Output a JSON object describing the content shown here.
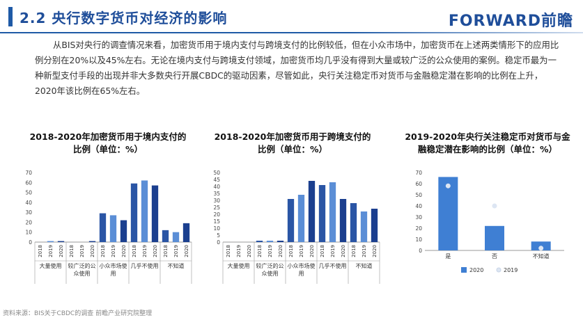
{
  "header": {
    "title": "2.2 央行数字货币对经济的影响",
    "logo": "FORWARD前瞻"
  },
  "intro": "从BIS对央行的调查情况来看，加密货币用于境内支付与跨境支付的比例较低，但在小众市场中，加密货币在上述两类情形下的应用比例分别在20%以及45%左右。无论在境内支付与跨境支付领域，加密货币均几乎没有得到大量或较广泛的公众使用的案例。稳定币最为一种新型支付手段的出现并非大多数央行开展CBDC的驱动因素，尽管如此，央行关注稳定币对货币与金融稳定潜在影响的比例在上升，2020年该比例在65%左右。",
  "colors": {
    "bar_2018": "#2a55a5",
    "bar_2019": "#5b8ed6",
    "bar_2020": "#1b3f8f",
    "accent": "#1f5aa6"
  },
  "chart_data": [
    {
      "type": "bar",
      "title": "2018-2020年加密货币用于境内支付的比例（单位：%）",
      "groups": [
        "大量使用",
        "较广泛的公众使用",
        "小众市场使用",
        "几乎不使用",
        "不知道"
      ],
      "years": [
        "2018",
        "2019",
        "2020"
      ],
      "values": [
        [
          0,
          1,
          1
        ],
        [
          0,
          0,
          1
        ],
        [
          29,
          27,
          22
        ],
        [
          59,
          62,
          57
        ],
        [
          12,
          10,
          19
        ]
      ],
      "ylim": [
        0,
        70
      ],
      "yticks": [
        0,
        10,
        20,
        30,
        40,
        50,
        60,
        70
      ]
    },
    {
      "type": "bar",
      "title": "2018-2020年加密货币用于跨境支付的比例（单位：%）",
      "groups": [
        "大量使用",
        "较广泛的公众使用",
        "小众市场使用",
        "几乎不使用",
        "不知道"
      ],
      "years": [
        "2018",
        "2019",
        "2020"
      ],
      "values": [
        [
          0,
          0,
          0
        ],
        [
          1,
          1,
          1
        ],
        [
          31,
          34,
          44
        ],
        [
          41,
          43,
          31
        ],
        [
          28,
          22,
          24
        ]
      ],
      "ylim": [
        0,
        50
      ],
      "yticks": [
        0,
        5,
        10,
        15,
        20,
        25,
        30,
        35,
        40,
        45,
        50
      ]
    },
    {
      "type": "bar",
      "title": "2019-2020年央行关注稳定币对货币与金融稳定潜在影响的比例（单位：%）",
      "categories": [
        "是",
        "否",
        "不知道"
      ],
      "series": [
        {
          "name": "2020",
          "values": [
            66,
            22,
            8
          ]
        },
        {
          "name": "2019",
          "values": [
            58,
            40,
            2
          ]
        }
      ],
      "ylim": [
        0,
        70
      ],
      "yticks": [
        0,
        10,
        20,
        30,
        40,
        50,
        60,
        70
      ],
      "legend": "bottom"
    }
  ],
  "source": "资料来源：BIS关于CBDC的调查 前瞻产业研究院整理"
}
